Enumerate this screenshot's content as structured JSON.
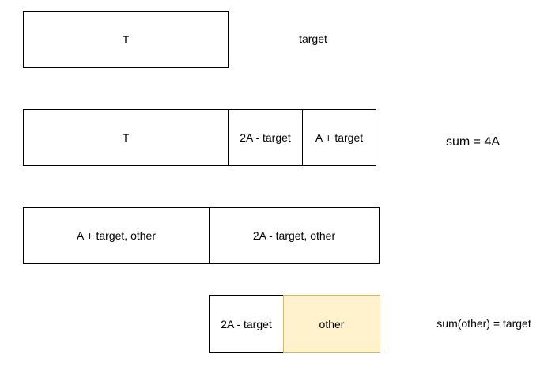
{
  "row1": {
    "box_t": "T",
    "label": "target"
  },
  "row2": {
    "box_t": "T",
    "box_2a_minus": "2A - target",
    "box_a_plus": "A + target",
    "label": "sum = 4A"
  },
  "row3": {
    "box_a_plus_other": "A + target, other",
    "box_2a_minus_other": "2A - target, other"
  },
  "row4": {
    "box_2a_minus": "2A - target",
    "box_other": "other",
    "label": "sum(other) = target"
  },
  "colors": {
    "highlight_fill": "#fff2cc",
    "highlight_stroke": "#d6b656",
    "stroke": "#000000"
  }
}
